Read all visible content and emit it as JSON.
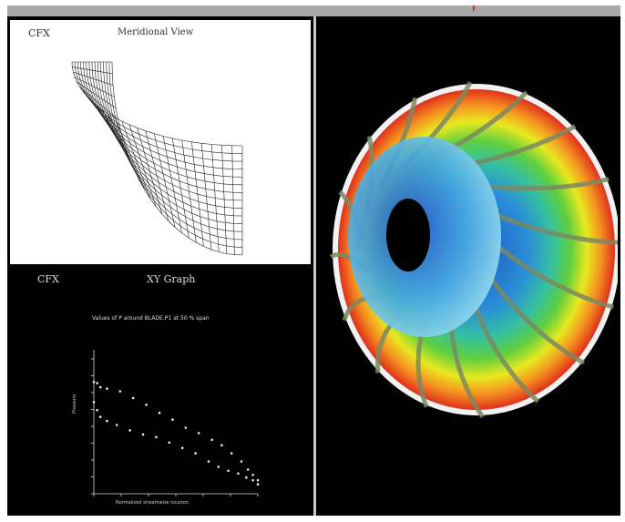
{
  "meridional": {
    "app_label": "CFX",
    "view_title": "Meridional View"
  },
  "xy_graph": {
    "app_label": "CFX",
    "view_title": "XY Graph"
  },
  "chart_data": {
    "type": "scatter",
    "title": "Values of P around BLADE.P1 at 50 % span",
    "xlabel": "Normalized streamwise location",
    "ylabel": "Pressure",
    "xlim": [
      0,
      1
    ],
    "ylim": [
      0,
      1
    ],
    "series": [
      {
        "x": [
          0.0,
          0.02,
          0.04,
          0.08,
          0.16,
          0.24,
          0.32,
          0.4,
          0.48,
          0.56,
          0.64,
          0.72,
          0.78,
          0.84,
          0.9,
          0.94,
          0.97,
          1.0
        ],
        "y": [
          0.83,
          0.82,
          0.79,
          0.78,
          0.76,
          0.71,
          0.66,
          0.6,
          0.55,
          0.49,
          0.45,
          0.4,
          0.36,
          0.3,
          0.24,
          0.18,
          0.14,
          0.1
        ]
      },
      {
        "x": [
          0.0,
          0.02,
          0.04,
          0.08,
          0.14,
          0.22,
          0.3,
          0.38,
          0.46,
          0.54,
          0.62,
          0.7,
          0.76,
          0.82,
          0.88,
          0.93,
          0.97,
          1.0
        ],
        "y": [
          0.68,
          0.62,
          0.57,
          0.54,
          0.51,
          0.47,
          0.44,
          0.42,
          0.38,
          0.34,
          0.3,
          0.24,
          0.2,
          0.17,
          0.15,
          0.12,
          0.1,
          0.07
        ]
      }
    ]
  },
  "colors": {
    "accent": "#a9a9a9",
    "background": "#000000",
    "panel": "#ffffff"
  }
}
